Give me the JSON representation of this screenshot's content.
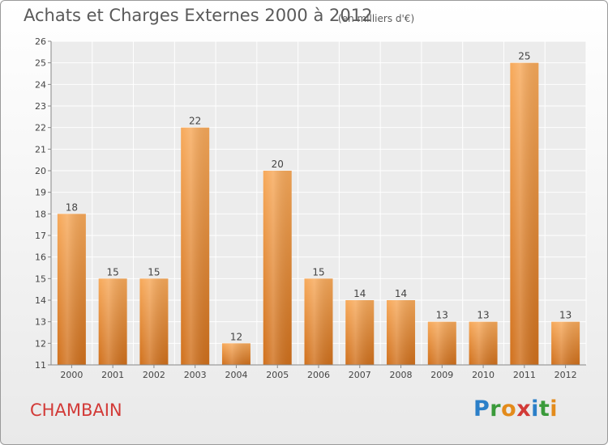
{
  "header": {
    "title": "Achats et Charges Externes 2000 à 2012",
    "units": "(en milliers d'€)"
  },
  "footer": {
    "commune": "CHAMBAIN",
    "logo": "Proxiti",
    "logo_letters": [
      {
        "char": "P",
        "color": "#2b7fc8"
      },
      {
        "char": "r",
        "color": "#3a9a3a"
      },
      {
        "char": "o",
        "color": "#e38b1b"
      },
      {
        "char": "x",
        "color": "#d23a37"
      },
      {
        "char": "i",
        "color": "#2b7fc8"
      },
      {
        "char": "t",
        "color": "#3a9a3a"
      },
      {
        "char": "i",
        "color": "#e38b1b"
      }
    ]
  },
  "colors": {
    "bar_top": "#f7a95a",
    "bar_bottom": "#d0701c",
    "plot_background": "#ececec",
    "grid": "#ffffff",
    "text": "#444444"
  },
  "chart_data": {
    "type": "bar",
    "title": "Achats et Charges Externes 2000 à 2012",
    "categories": [
      "2000",
      "2001",
      "2002",
      "2003",
      "2004",
      "2005",
      "2006",
      "2007",
      "2008",
      "2009",
      "2010",
      "2011",
      "2012"
    ],
    "values": [
      18,
      15,
      15,
      22,
      12,
      20,
      15,
      14,
      14,
      13,
      13,
      25,
      13
    ],
    "xlabel": "",
    "ylabel": "",
    "ylim": [
      11,
      26
    ],
    "yticks": [
      11,
      12,
      13,
      14,
      15,
      16,
      17,
      18,
      19,
      20,
      21,
      22,
      23,
      24,
      25,
      26
    ],
    "grid": true,
    "legend": "none"
  }
}
